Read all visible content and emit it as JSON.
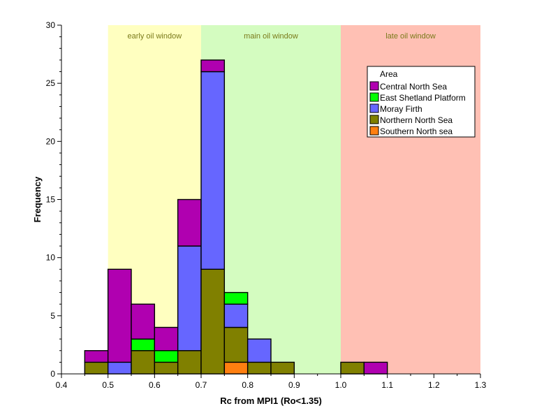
{
  "chart_data": {
    "type": "bar",
    "stacked": true,
    "xlabel": "Rc from MPI1 (Ro<1.35)",
    "ylabel": "Frequency",
    "xlim": [
      0.4,
      1.3
    ],
    "ylim": [
      0,
      30
    ],
    "x_ticks": [
      "0.4",
      "0.5",
      "0.6",
      "0.7",
      "0.8",
      "0.9",
      "1.0",
      "1.1",
      "1.2",
      "1.3"
    ],
    "y_ticks": [
      "0",
      "5",
      "10",
      "15",
      "20",
      "25",
      "30"
    ],
    "bin_width": 0.05,
    "bins": [
      0.45,
      0.5,
      0.55,
      0.6,
      0.65,
      0.7,
      0.75,
      0.8,
      0.85,
      0.9,
      0.95,
      1.0,
      1.05,
      1.1
    ],
    "zones": [
      {
        "label": "early oil window",
        "from": 0.5,
        "to": 0.7,
        "color": "#ffffc0"
      },
      {
        "label": "main oil window",
        "from": 0.7,
        "to": 1.0,
        "color": "#d4fcc0"
      },
      {
        "label": "late oil window",
        "from": 1.0,
        "to": 1.3,
        "color": "#ffc0b4"
      }
    ],
    "legend_title": "Area",
    "legend_position": "top-right",
    "series": [
      {
        "name": "Southern North sea",
        "color": "#ff7f10",
        "values": [
          0,
          0,
          0,
          0,
          0,
          0,
          1,
          0,
          0,
          0,
          0,
          0,
          0,
          0
        ]
      },
      {
        "name": "Northern North Sea",
        "color": "#808000",
        "values": [
          1,
          0,
          2,
          1,
          2,
          9,
          3,
          1,
          1,
          0,
          0,
          1,
          0,
          0
        ]
      },
      {
        "name": "Moray Firth",
        "color": "#6666ff",
        "values": [
          0,
          1,
          0,
          0,
          9,
          17,
          2,
          2,
          0,
          0,
          0,
          0,
          0,
          0
        ]
      },
      {
        "name": "East Shetland Platform",
        "color": "#00ff00",
        "values": [
          0,
          0,
          1,
          1,
          0,
          0,
          1,
          0,
          0,
          0,
          0,
          0,
          0,
          0
        ]
      },
      {
        "name": "Central North Sea",
        "color": "#b000b0",
        "values": [
          1,
          8,
          3,
          2,
          4,
          1,
          0,
          0,
          0,
          0,
          0,
          0,
          1,
          0
        ]
      }
    ],
    "legend_order": [
      "Central North Sea",
      "East Shetland Platform",
      "Moray Firth",
      "Northern North Sea",
      "Southern North sea"
    ]
  }
}
